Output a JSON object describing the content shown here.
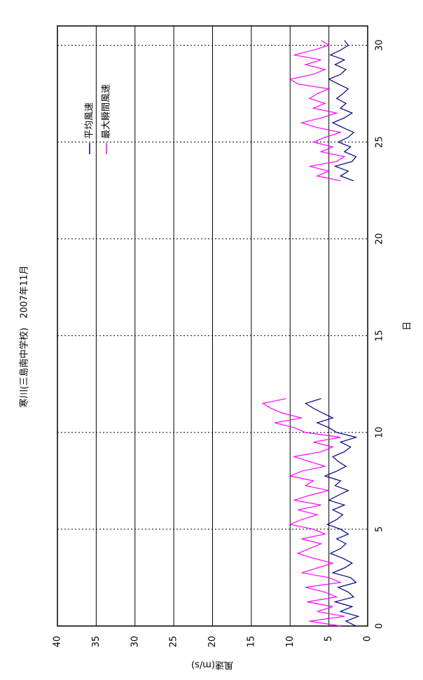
{
  "chart_data": {
    "type": "line",
    "title": "寒川(三島南中学校)　2007年11月",
    "x_label": "日",
    "y_label": "風速(m/s)",
    "x": [
      0,
      0.25,
      0.5,
      0.75,
      1,
      1.25,
      1.5,
      1.75,
      2,
      2.25,
      2.5,
      2.75,
      3,
      3.25,
      3.5,
      3.75,
      4,
      4.25,
      4.5,
      4.75,
      5,
      5.25,
      5.5,
      5.75,
      6,
      6.25,
      6.5,
      6.75,
      7,
      7.25,
      7.5,
      7.75,
      8,
      8.25,
      8.5,
      8.75,
      9,
      9.25,
      9.5,
      9.75,
      10,
      10.25,
      10.5,
      10.75,
      11,
      11.25,
      11.5,
      11.75,
      17,
      23,
      23.25,
      23.5,
      23.75,
      24,
      24.25,
      24.5,
      24.75,
      25,
      25.25,
      25.5,
      25.75,
      26,
      26.25,
      26.5,
      26.75,
      27,
      27.25,
      27.5,
      27.75,
      28,
      28.25,
      28.5,
      28.75,
      29,
      29.25,
      29.5,
      29.75,
      30,
      30.25
    ],
    "series": [
      {
        "name": "平均風速",
        "color": "#000080",
        "values": [
          1.5,
          2.8,
          1.2,
          3.5,
          2.0,
          4.2,
          1.8,
          2.5,
          3.8,
          1.5,
          2.2,
          4.5,
          3.0,
          2.0,
          3.2,
          4.8,
          3.5,
          2.8,
          4.0,
          2.5,
          3.5,
          5.2,
          4.0,
          3.2,
          4.5,
          3.0,
          5.0,
          3.8,
          2.5,
          4.2,
          3.5,
          5.5,
          4.0,
          2.8,
          3.8,
          4.5,
          3.0,
          2.2,
          3.5,
          1.5,
          4.0,
          5.0,
          6.5,
          4.5,
          5.8,
          7.0,
          8.0,
          6.0,
          null,
          1.8,
          3.5,
          2.5,
          4.2,
          2.0,
          1.5,
          3.0,
          2.2,
          3.8,
          2.5,
          1.8,
          3.2,
          4.5,
          3.0,
          2.0,
          3.5,
          2.8,
          4.0,
          3.2,
          2.5,
          3.8,
          5.0,
          3.5,
          2.8,
          4.2,
          3.0,
          4.8,
          3.5,
          2.5,
          3.0
        ]
      },
      {
        "name": "最大瞬間風速",
        "color": "#ff00ff",
        "values": [
          3.5,
          7.5,
          3.0,
          6.5,
          4.5,
          7.8,
          4.0,
          5.5,
          8.0,
          3.5,
          5.0,
          8.5,
          6.5,
          4.5,
          7.0,
          9.0,
          7.5,
          6.0,
          8.5,
          5.5,
          7.0,
          10.0,
          8.5,
          6.5,
          9.0,
          6.0,
          9.5,
          7.5,
          5.0,
          8.0,
          7.0,
          10.0,
          8.5,
          5.5,
          7.5,
          9.5,
          6.0,
          4.5,
          7.0,
          3.5,
          8.0,
          9.5,
          12.0,
          8.5,
          11.0,
          12.5,
          13.5,
          10.5,
          null,
          3.5,
          6.5,
          5.0,
          7.5,
          4.0,
          3.0,
          6.0,
          4.5,
          7.0,
          5.5,
          3.5,
          6.5,
          8.5,
          6.0,
          4.0,
          7.0,
          5.5,
          7.5,
          6.5,
          5.0,
          9.0,
          10.0,
          7.0,
          5.5,
          8.0,
          6.0,
          9.5,
          7.0,
          5.0,
          6.0
        ]
      }
    ],
    "xlim": [
      0,
      31
    ],
    "xticks": [
      0,
      5,
      10,
      15,
      20,
      25,
      30
    ],
    "ylim": [
      0,
      40
    ],
    "yticks": [
      0,
      5,
      10,
      15,
      20,
      25,
      30,
      35,
      40
    ],
    "grid": true,
    "legend": "upper right"
  }
}
